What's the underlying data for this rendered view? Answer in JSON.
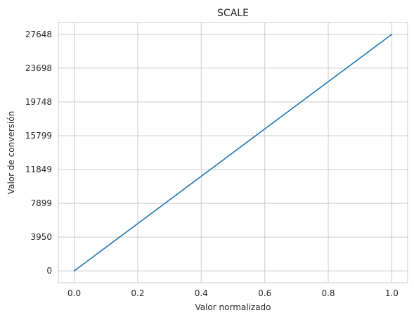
{
  "chart_data": {
    "type": "line",
    "title": "SCALE",
    "xlabel": "Valor normalizado",
    "ylabel": "Valor de conversión",
    "xlim": [
      -0.05,
      1.05
    ],
    "ylim": [
      -1382.4,
      29030.4
    ],
    "x_ticks": [
      0.0,
      0.2,
      0.4,
      0.6,
      0.8,
      1.0
    ],
    "x_tick_labels": [
      "0.0",
      "0.2",
      "0.4",
      "0.6",
      "0.8",
      "1.0"
    ],
    "y_ticks": [
      0,
      3950,
      7899,
      11849,
      15799,
      19748,
      23698,
      27648
    ],
    "y_tick_labels": [
      "0",
      "3950",
      "7899",
      "11849",
      "15799",
      "19748",
      "23698",
      "27648"
    ],
    "grid": true,
    "series": [
      {
        "x": [
          0.0,
          1.0
        ],
        "y": [
          0,
          27648
        ],
        "color": "#1f77b4"
      }
    ]
  }
}
